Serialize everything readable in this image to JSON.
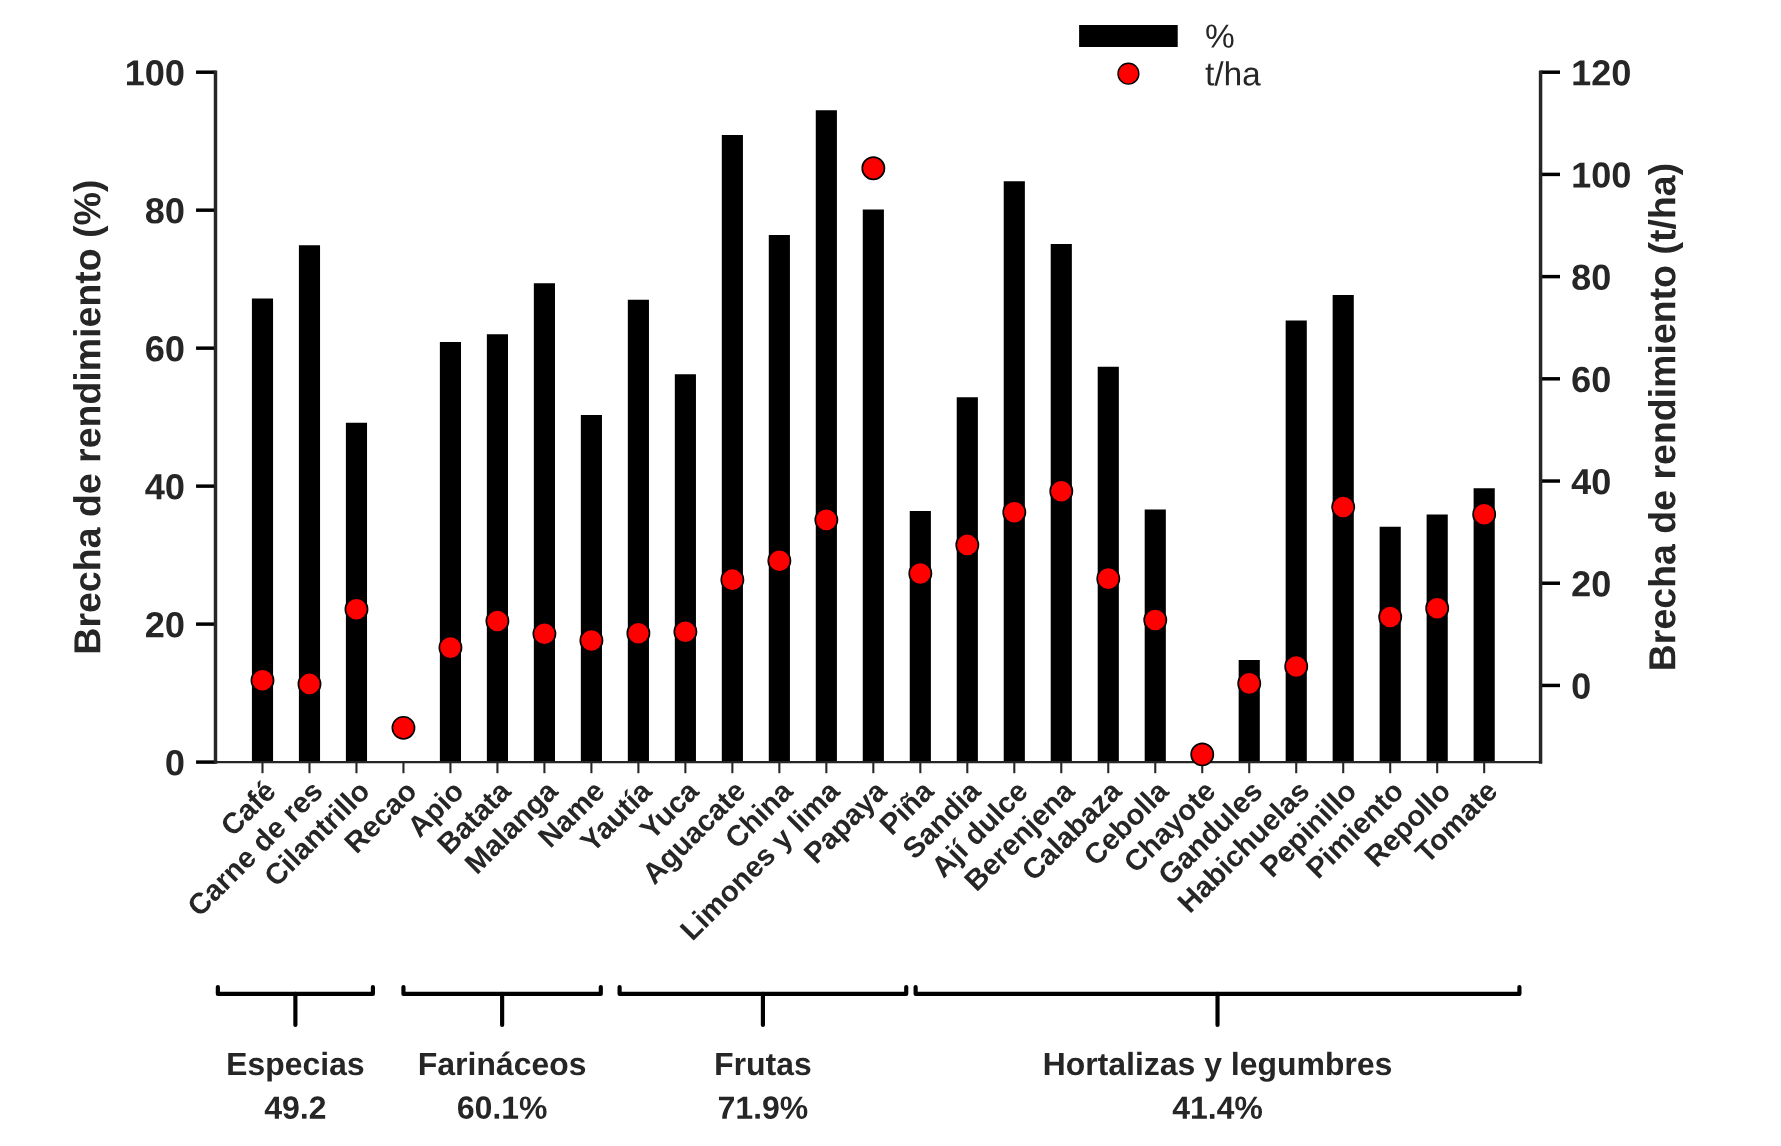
{
  "chart_data": {
    "type": "bar",
    "categories": [
      "Café",
      "Carne de res",
      "Cilantrillo",
      "Recao",
      "Apio",
      "Batata",
      "Malanga",
      "Name",
      "Yautía",
      "Yuca",
      "Aguacate",
      "China",
      "Limones y lima",
      "Papaya",
      "Piña",
      "Sandia",
      "Ají dulce",
      "Berenjena",
      "Calabaza",
      "Cebolla",
      "Chayote",
      "Gandules",
      "Habichuelas",
      "Pepinillo",
      "Pimiento",
      "Repollo",
      "Tomate"
    ],
    "series": [
      {
        "name": "%",
        "type": "bar",
        "color": "#000000",
        "values": [
          67.2,
          74.9,
          49.2,
          null,
          60.9,
          62.0,
          69.4,
          50.3,
          67.0,
          56.2,
          90.9,
          76.4,
          94.5,
          80.1,
          36.4,
          52.9,
          84.2,
          75.1,
          57.3,
          36.6,
          null,
          14.8,
          64.0,
          67.7,
          34.1,
          35.9,
          39.7
        ]
      },
      {
        "name": "t/ha",
        "type": "scatter",
        "axis": "y2",
        "color": "#ff0000",
        "values": [
          1.0,
          0.3,
          14.9,
          -8.3,
          7.4,
          12.6,
          10.1,
          8.8,
          10.2,
          10.5,
          20.7,
          24.4,
          32.4,
          101.2,
          21.9,
          27.5,
          33.9,
          38.0,
          20.9,
          12.8,
          -13.5,
          0.4,
          3.7,
          34.9,
          13.4,
          15.1,
          33.5
        ]
      }
    ],
    "ylabel": "Brecha de rendimiento (%)",
    "y2label": "Brecha de rendimiento (t/ha)",
    "ylim": [
      0,
      100
    ],
    "yticks": [
      0,
      20,
      40,
      60,
      80,
      100
    ],
    "y2lim": [
      -15,
      120
    ],
    "y2ticks": [
      0,
      20,
      40,
      60,
      80,
      100,
      120
    ],
    "marker": "circle",
    "legend": "top",
    "grid": false,
    "annotations": [
      "Especias\n49.2",
      "Farináceos\n60.1%",
      "Frutas\n71.9%",
      "Hortalizas y legumbres\n41.4%"
    ]
  }
}
